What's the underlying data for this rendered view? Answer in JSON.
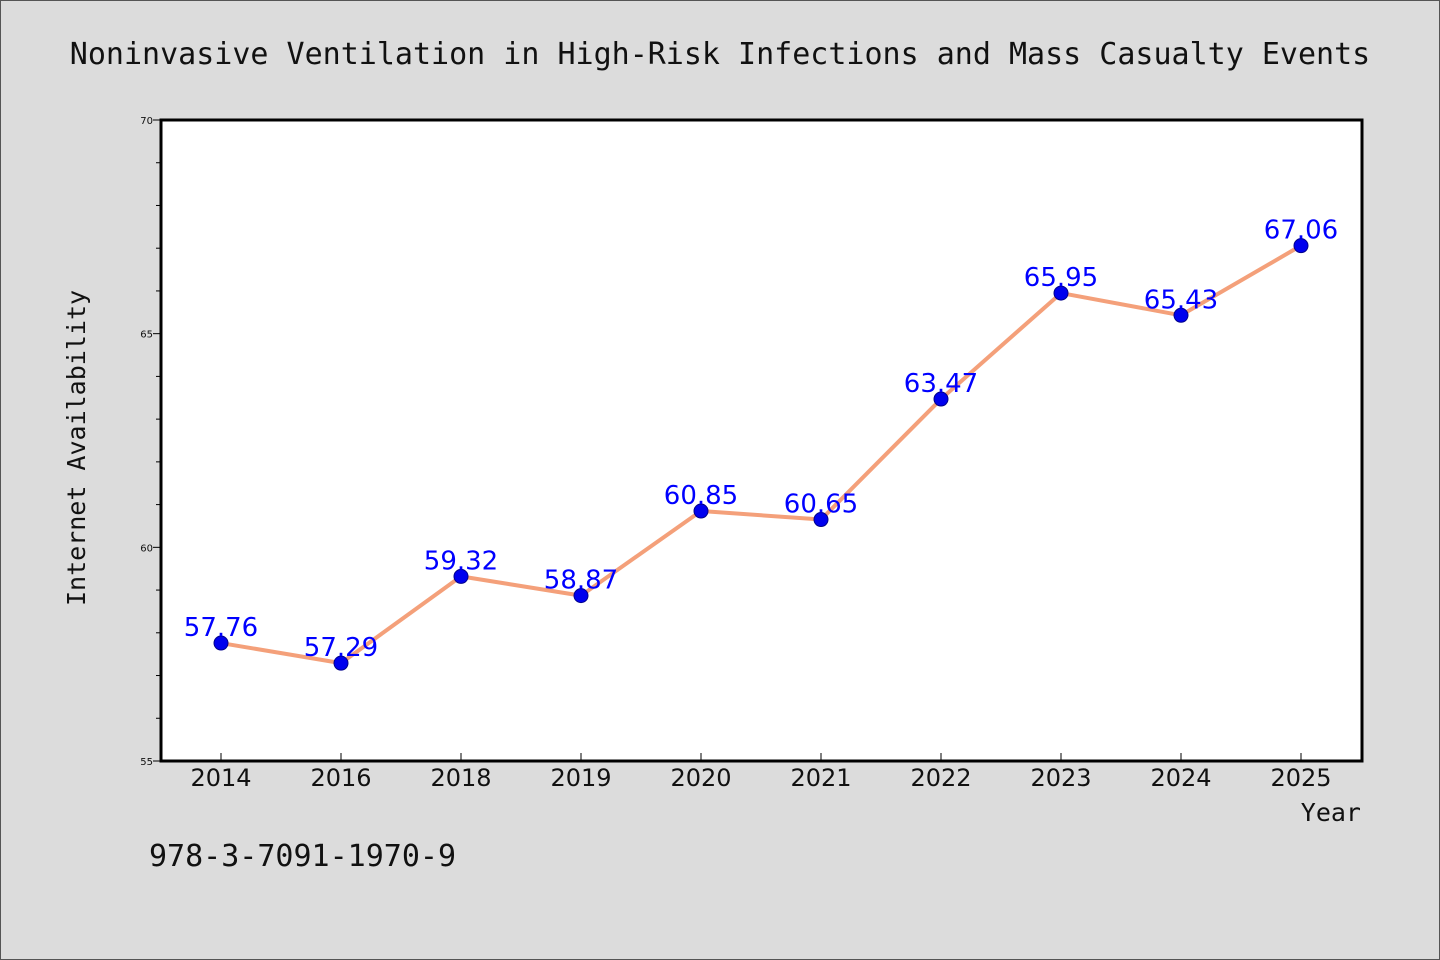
{
  "chart_data": {
    "type": "line",
    "title": "Noninvasive Ventilation in High-Risk Infections and Mass Casualty Events",
    "xlabel": "Year",
    "ylabel": "Internet Availability",
    "categories": [
      "2014",
      "2016",
      "2018",
      "2019",
      "2020",
      "2021",
      "2022",
      "2023",
      "2024",
      "2025"
    ],
    "series": [
      {
        "values": [
          57.76,
          57.29,
          59.32,
          58.87,
          60.85,
          60.65,
          63.47,
          65.95,
          65.43,
          67.06
        ],
        "labels": [
          "57.76",
          "57.29",
          "59.32",
          "58.87",
          "60.85",
          "60.65",
          "63.47",
          "65.95",
          "65.43",
          "67.06"
        ],
        "line_color": "#f4a07a",
        "marker_color": "#0000ee",
        "label_color": "#0000ff"
      }
    ],
    "ylim": [
      55,
      70
    ],
    "yticks": [
      "55",
      "60",
      "65",
      "70"
    ],
    "grid": false,
    "legend": "none"
  },
  "annotation": {
    "isbn": "978-3-7091-1970-9"
  },
  "colors": {
    "background": "#dcdcdc",
    "plot_area": "#ffffff",
    "axis": "#000000"
  }
}
